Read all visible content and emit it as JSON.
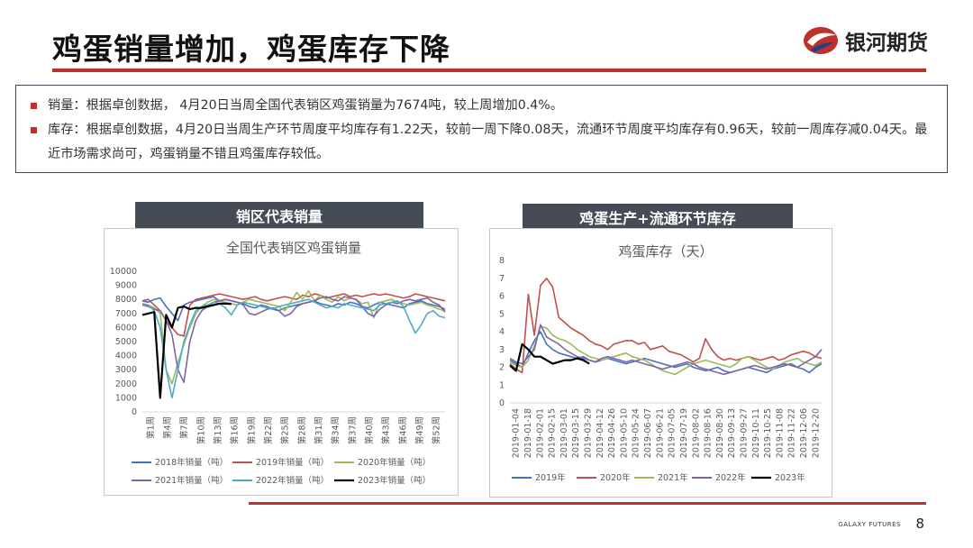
{
  "header": {
    "title": "鸡蛋销量增加，鸡蛋库存下降",
    "logo_text": "银河期货",
    "accent": "#c0302a"
  },
  "bullets": [
    "销量：根据卓创数据， 4月20日当周全国代表销区鸡蛋销量为7674吨，较上周增加0.4%。",
    "库存：根据卓创数据，4月20日当周生产环节周度平均库存有1.22天，较前一周下降0.08天，流通环节周度平均库存有0.96天，较前一周库存减0.04天。最近市场需求尚可，鸡蛋销量不错且鸡蛋库存较低。"
  ],
  "panels": {
    "left_header": "销区代表销量",
    "right_header": "鸡蛋生产+流通环节库存"
  },
  "footer": {
    "brand": "GALAXY FUTURES",
    "page": "8"
  },
  "chart_data": [
    {
      "type": "line",
      "title": "全国代表销区鸡蛋销量",
      "ylim": [
        0,
        10000
      ],
      "yticks": [
        0,
        1000,
        2000,
        3000,
        4000,
        5000,
        6000,
        7000,
        8000,
        9000,
        10000
      ],
      "x_tick_labels": [
        "第1周",
        "第4周",
        "第7周",
        "第10周",
        "第13周",
        "第16周",
        "第19周",
        "第22周",
        "第25周",
        "第28周",
        "第31周",
        "第34周",
        "第37周",
        "第40周",
        "第43周",
        "第46周",
        "第49周",
        "第52周"
      ],
      "legend_position": "bottom",
      "series": [
        {
          "name": "2018年销量（吨）",
          "color": "#4472c4",
          "values": [
            7900,
            7800,
            8000,
            8100,
            7500,
            7000,
            6500,
            7600,
            7800,
            7900,
            8000,
            8100,
            8200,
            7900,
            8000,
            7900,
            7800,
            7700,
            7500,
            7400,
            7600,
            7500,
            7300,
            7200,
            7400,
            7500,
            7600,
            7700,
            7800,
            7900,
            7700,
            7600,
            7500,
            7700,
            7600,
            7800,
            7700,
            7500,
            7400,
            7600,
            7800,
            7700,
            7600,
            7500,
            7400,
            7700,
            7800,
            7900,
            7700,
            7600,
            7500,
            7300
          ]
        },
        {
          "name": "2019年销量（吨）",
          "color": "#c0504d",
          "values": [
            7900,
            8000,
            7600,
            7200,
            6500,
            6000,
            5500,
            5400,
            7600,
            8000,
            8100,
            8200,
            8300,
            8400,
            8300,
            8200,
            8100,
            8000,
            8100,
            8200,
            8000,
            7900,
            8000,
            8100,
            8200,
            8100,
            8000,
            8300,
            8200,
            8400,
            8300,
            8100,
            8200,
            8300,
            8400,
            8200,
            8300,
            8200,
            8300,
            8400,
            8300,
            8400,
            8300,
            8200,
            8100,
            8200,
            8400,
            8300,
            8200,
            8100,
            8000,
            7900
          ]
        },
        {
          "name": "2020年销量（吨）",
          "color": "#9bbb59",
          "values": [
            7700,
            7600,
            7400,
            7000,
            3000,
            2000,
            3500,
            4800,
            6000,
            7000,
            7500,
            7800,
            8000,
            7900,
            7800,
            7700,
            7600,
            7800,
            8000,
            7900,
            7800,
            7700,
            7600,
            7500,
            7200,
            7800,
            8500,
            8000,
            8600,
            7900,
            8300,
            8000,
            7800,
            8200,
            7900,
            8100,
            8000,
            7700,
            7800,
            6700,
            7800,
            7900,
            8000,
            7800,
            7700,
            7600,
            7700,
            7800,
            7600,
            7500,
            7300,
            7200
          ]
        },
        {
          "name": "2021年销量（吨）",
          "color": "#8064a2",
          "values": [
            7600,
            7500,
            7300,
            7200,
            6500,
            5500,
            3000,
            2100,
            5000,
            6500,
            7200,
            7500,
            7800,
            7900,
            8000,
            7900,
            7800,
            7600,
            7000,
            6900,
            7100,
            7300,
            7400,
            7200,
            6800,
            7000,
            7500,
            7700,
            7800,
            7900,
            8100,
            8200,
            8000,
            7900,
            8200,
            8100,
            8000,
            7500,
            7000,
            6800,
            7300,
            7600,
            7800,
            7700,
            7900,
            8000,
            7900,
            8000,
            8100,
            7800,
            7600,
            7100
          ]
        },
        {
          "name": "2022年销量（吨）",
          "color": "#4bacc6",
          "values": [
            7700,
            7600,
            7200,
            6000,
            3000,
            1000,
            3000,
            5000,
            6200,
            7200,
            7500,
            7600,
            7800,
            7700,
            7400,
            6900,
            7600,
            7800,
            7700,
            7600,
            7500,
            7400,
            7300,
            7500,
            7600,
            7700,
            7800,
            7900,
            8000,
            7800,
            7600,
            7400,
            7500,
            7400,
            7700,
            7600,
            7500,
            7400,
            7300,
            7200,
            7600,
            7700,
            7800,
            7900,
            7500,
            6500,
            5600,
            6200,
            7000,
            7200,
            6800,
            6700
          ]
        },
        {
          "name": "2023年销量（吨）",
          "color": "#000000",
          "values": [
            6900,
            7000,
            7100,
            1000,
            6900,
            6000,
            7400,
            7500,
            7300,
            7400,
            7400,
            7500,
            7600,
            7700,
            7700,
            7674
          ]
        }
      ]
    },
    {
      "type": "line",
      "title": "鸡蛋库存（天）",
      "ylim": [
        0,
        8
      ],
      "yticks": [
        0,
        1,
        2,
        3,
        4,
        5,
        6,
        7,
        8
      ],
      "x_tick_labels": [
        "2019-01-04",
        "2019-01-18",
        "2019-02-01",
        "2019-02-15",
        "2019-03-01",
        "2019-03-15",
        "2019-03-29",
        "2019-04-12",
        "2019-04-26",
        "2019-05-10",
        "2019-05-24",
        "2019-06-07",
        "2019-06-21",
        "2019-07-05",
        "2019-07-19",
        "2019-08-02",
        "2019-08-16",
        "2019-08-30",
        "2019-09-13",
        "2019-09-27",
        "2019-10-11",
        "2019-10-25",
        "2019-11-08",
        "2019-11-22",
        "2019-12-06",
        "2019-12-20"
      ],
      "legend_position": "bottom",
      "series": [
        {
          "name": "2019年",
          "color": "#4472c4",
          "values": [
            2.4,
            2.2,
            2.0,
            2.8,
            3.5,
            4.0,
            3.3,
            3.0,
            2.8,
            2.7,
            2.6,
            2.5,
            2.6,
            2.4,
            2.3,
            2.4,
            2.5,
            2.4,
            2.3,
            2.2,
            2.3,
            2.4,
            2.5,
            2.4,
            2.3,
            2.2,
            2.1,
            2.0,
            2.1,
            2.2,
            2.0,
            1.9,
            1.8,
            1.9,
            2.0,
            1.8,
            1.7,
            1.8,
            1.9,
            2.0,
            1.9,
            1.8,
            1.7,
            1.9,
            2.0,
            2.1,
            2.2,
            2.0,
            1.9,
            1.7,
            2.0,
            2.2
          ]
        },
        {
          "name": "2020年",
          "color": "#c0504d",
          "values": [
            2.2,
            1.9,
            1.7,
            6.1,
            3.8,
            6.6,
            7.0,
            6.5,
            4.8,
            4.5,
            4.2,
            4.0,
            3.8,
            3.5,
            3.3,
            3.2,
            3.0,
            3.3,
            3.4,
            3.5,
            3.5,
            3.3,
            3.4,
            3.0,
            3.1,
            3.2,
            2.9,
            2.8,
            2.7,
            2.5,
            2.3,
            2.5,
            3.6,
            3.0,
            2.6,
            2.4,
            2.5,
            2.4,
            2.5,
            2.6,
            2.5,
            2.4,
            2.5,
            2.6,
            2.4,
            2.5,
            2.7,
            2.8,
            2.9,
            2.8,
            2.6,
            2.5
          ]
        },
        {
          "name": "2021年",
          "color": "#9bbb59",
          "values": [
            2.3,
            2.1,
            2.0,
            2.4,
            3.2,
            4.3,
            4.2,
            3.8,
            3.6,
            3.5,
            3.3,
            3.0,
            2.8,
            2.6,
            2.5,
            2.4,
            2.5,
            2.6,
            2.7,
            2.8,
            2.6,
            2.5,
            2.4,
            2.2,
            2.0,
            1.8,
            1.7,
            1.6,
            1.8,
            2.0,
            2.2,
            2.3,
            2.4,
            2.3,
            2.2,
            2.1,
            2.0,
            2.2,
            2.5,
            2.6,
            2.4,
            2.2,
            2.0,
            1.9,
            2.1,
            2.3,
            2.4,
            2.5,
            2.3,
            2.2,
            2.1,
            2.3
          ]
        },
        {
          "name": "2022年",
          "color": "#8064a2",
          "values": [
            2.5,
            2.3,
            2.2,
            2.6,
            3.0,
            4.4,
            3.7,
            3.5,
            3.3,
            3.0,
            2.8,
            2.6,
            2.5,
            2.4,
            2.3,
            2.5,
            2.6,
            2.5,
            2.4,
            2.3,
            2.4,
            2.3,
            2.2,
            2.1,
            2.0,
            1.9,
            2.0,
            2.1,
            2.2,
            2.3,
            2.2,
            2.0,
            1.9,
            1.8,
            1.7,
            1.6,
            1.7,
            1.8,
            1.9,
            2.0,
            2.1,
            2.0,
            1.9,
            2.0,
            2.1,
            2.2,
            2.1,
            2.0,
            2.2,
            2.4,
            2.6,
            3.0
          ]
        },
        {
          "name": "2023年",
          "color": "#000000",
          "values": [
            2.1,
            1.8,
            3.3,
            3.0,
            2.6,
            2.6,
            2.4,
            2.2,
            2.3,
            2.4,
            2.4,
            2.5,
            2.4,
            2.2
          ]
        }
      ]
    }
  ]
}
